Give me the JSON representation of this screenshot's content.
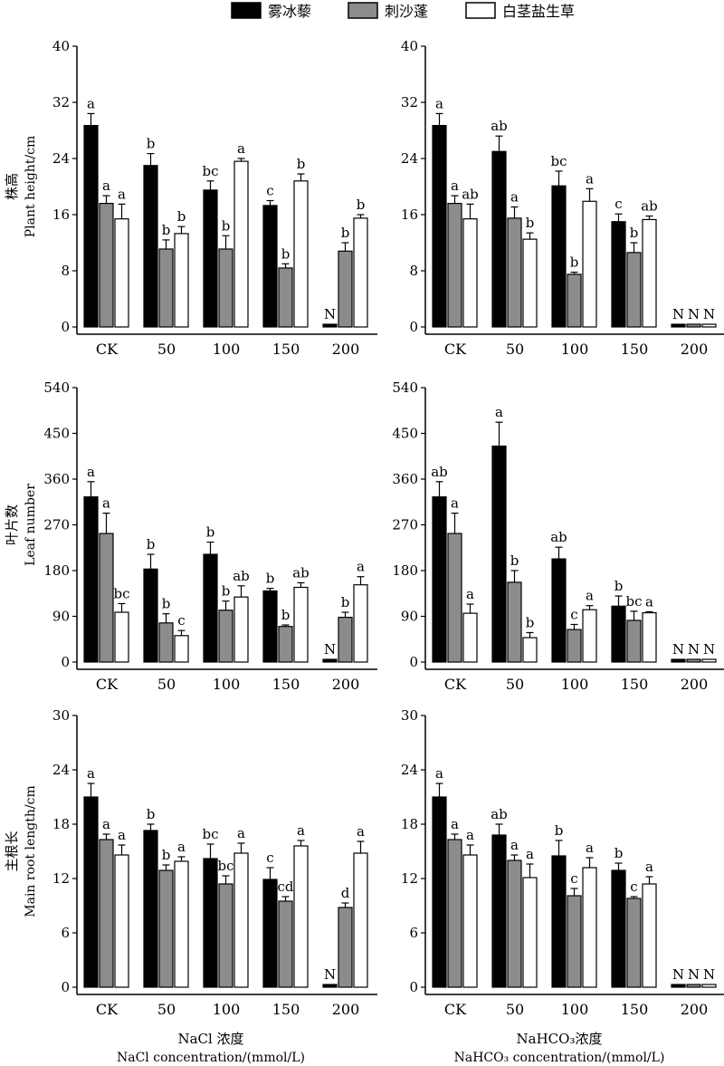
{
  "colors": {
    "series": [
      "#000000",
      "#8c8c8c",
      "#ffffff"
    ],
    "stroke": "#000000"
  },
  "legend": {
    "position": "top-center",
    "entries": [
      "雾冰藜",
      "刺沙蓬",
      "白茎盐生草"
    ]
  },
  "x_titles": {
    "left": {
      "cn": "NaCl 浓度",
      "en": "NaCl concentration/(mmol/L)"
    },
    "right": {
      "cn": "NaHCO₃浓度",
      "en": "NaHCO₃ concentration/(mmol/L)"
    }
  },
  "chart_data": [
    {
      "type": "bar",
      "ylabel_cn": "株高",
      "ylabel_en": "Plant height/cm",
      "ylim": [
        0,
        40
      ],
      "yticks": [
        0,
        8,
        16,
        24,
        32,
        40
      ],
      "categories": [
        "CK",
        "50",
        "100",
        "150",
        "200"
      ],
      "series": [
        {
          "name": "雾冰藜",
          "values": [
            28.7,
            23.0,
            19.5,
            17.3,
            0
          ],
          "errors": [
            1.7,
            1.7,
            1.3,
            0.7,
            0
          ],
          "letters": [
            "a",
            "b",
            "bc",
            "c",
            "N"
          ]
        },
        {
          "name": "刺沙蓬",
          "values": [
            17.6,
            11.1,
            11.1,
            8.4,
            10.8
          ],
          "errors": [
            1.1,
            1.3,
            1.9,
            0.6,
            1.2
          ],
          "letters": [
            "a",
            "b",
            "b",
            "b",
            "b"
          ]
        },
        {
          "name": "白茎盐生草",
          "values": [
            15.4,
            13.3,
            23.6,
            20.8,
            15.5
          ],
          "errors": [
            2.1,
            1.0,
            0.4,
            1.0,
            0.5
          ],
          "letters": [
            "a",
            "b",
            "a",
            "b",
            "b"
          ]
        }
      ]
    },
    {
      "type": "bar",
      "ylabel_cn": "",
      "ylabel_en": "",
      "ylim": [
        0,
        40
      ],
      "yticks": [
        0,
        8,
        16,
        24,
        32,
        40
      ],
      "categories": [
        "CK",
        "50",
        "100",
        "150",
        "200"
      ],
      "series": [
        {
          "name": "雾冰藜",
          "values": [
            28.7,
            25.0,
            20.1,
            15.0,
            0
          ],
          "errors": [
            1.7,
            2.2,
            2.1,
            1.1,
            0
          ],
          "letters": [
            "a",
            "ab",
            "bc",
            "c",
            "N"
          ]
        },
        {
          "name": "刺沙蓬",
          "values": [
            17.6,
            15.5,
            7.5,
            10.6,
            0
          ],
          "errors": [
            1.1,
            1.6,
            0.3,
            1.4,
            0
          ],
          "letters": [
            "a",
            "a",
            "b",
            "b",
            "N"
          ]
        },
        {
          "name": "白茎盐生草",
          "values": [
            15.4,
            12.5,
            17.9,
            15.3,
            0
          ],
          "errors": [
            2.1,
            0.9,
            1.8,
            0.5,
            0
          ],
          "letters": [
            "ab",
            "b",
            "a",
            "ab",
            "N"
          ]
        }
      ]
    },
    {
      "type": "bar",
      "ylabel_cn": "叶片数",
      "ylabel_en": "Leaf number",
      "ylim": [
        0,
        540
      ],
      "yticks": [
        0,
        90,
        180,
        270,
        360,
        450,
        540
      ],
      "categories": [
        "CK",
        "50",
        "100",
        "150",
        "200"
      ],
      "series": [
        {
          "name": "雾冰藜",
          "values": [
            325,
            183,
            212,
            140,
            0
          ],
          "errors": [
            30,
            29,
            24,
            5,
            0
          ],
          "letters": [
            "a",
            "b",
            "b",
            "b",
            "N"
          ]
        },
        {
          "name": "刺沙蓬",
          "values": [
            253,
            77,
            102,
            70,
            88
          ],
          "errors": [
            40,
            18,
            18,
            3,
            10
          ],
          "letters": [
            "a",
            "b",
            "b",
            "b",
            "b"
          ]
        },
        {
          "name": "白茎盐生草",
          "values": [
            98,
            52,
            128,
            147,
            152
          ],
          "errors": [
            17,
            10,
            22,
            9,
            16
          ],
          "letters": [
            "bc",
            "c",
            "ab",
            "ab",
            "a"
          ]
        }
      ]
    },
    {
      "type": "bar",
      "ylabel_cn": "",
      "ylabel_en": "",
      "ylim": [
        0,
        540
      ],
      "yticks": [
        0,
        90,
        180,
        270,
        360,
        450,
        540
      ],
      "categories": [
        "CK",
        "50",
        "100",
        "150",
        "200"
      ],
      "series": [
        {
          "name": "雾冰藜",
          "values": [
            325,
            425,
            203,
            110,
            0
          ],
          "errors": [
            30,
            47,
            23,
            20,
            0
          ],
          "letters": [
            "ab",
            "a",
            "ab",
            "b",
            "N"
          ]
        },
        {
          "name": "刺沙蓬",
          "values": [
            253,
            157,
            64,
            82,
            0
          ],
          "errors": [
            40,
            23,
            10,
            18,
            0
          ],
          "letters": [
            "a",
            "b",
            "c",
            "bc",
            "N"
          ]
        },
        {
          "name": "白茎盐生草",
          "values": [
            96,
            48,
            103,
            97,
            0
          ],
          "errors": [
            18,
            10,
            8,
            2,
            0
          ],
          "letters": [
            "a",
            "b",
            "a",
            "a",
            "N"
          ]
        }
      ]
    },
    {
      "type": "bar",
      "ylabel_cn": "主根长",
      "ylabel_en": "Main root length/cm",
      "ylim": [
        0,
        30
      ],
      "yticks": [
        0,
        6,
        12,
        18,
        24,
        30
      ],
      "categories": [
        "CK",
        "50",
        "100",
        "150",
        "200"
      ],
      "series": [
        {
          "name": "雾冰藜",
          "values": [
            21.0,
            17.3,
            14.2,
            11.9,
            0
          ],
          "errors": [
            1.5,
            0.7,
            1.6,
            1.3,
            0
          ],
          "letters": [
            "a",
            "b",
            "bc",
            "c",
            "N"
          ]
        },
        {
          "name": "刺沙蓬",
          "values": [
            16.3,
            12.9,
            11.4,
            9.5,
            8.8
          ],
          "errors": [
            0.6,
            0.6,
            0.9,
            0.5,
            0.5
          ],
          "letters": [
            "a",
            "b",
            "bc",
            "cd",
            "d"
          ]
        },
        {
          "name": "白茎盐生草",
          "values": [
            14.6,
            13.9,
            14.8,
            15.6,
            14.8
          ],
          "errors": [
            1.1,
            0.5,
            1.1,
            0.6,
            1.3
          ],
          "letters": [
            "a",
            "a",
            "a",
            "a",
            "a"
          ]
        }
      ]
    },
    {
      "type": "bar",
      "ylabel_cn": "",
      "ylabel_en": "",
      "ylim": [
        0,
        30
      ],
      "yticks": [
        0,
        6,
        12,
        18,
        24,
        30
      ],
      "categories": [
        "CK",
        "50",
        "100",
        "150",
        "200"
      ],
      "series": [
        {
          "name": "雾冰藜",
          "values": [
            21.0,
            16.8,
            14.5,
            12.9,
            0
          ],
          "errors": [
            1.5,
            1.2,
            1.7,
            0.8,
            0
          ],
          "letters": [
            "a",
            "ab",
            "b",
            "b",
            "N"
          ]
        },
        {
          "name": "刺沙蓬",
          "values": [
            16.3,
            14.0,
            10.1,
            9.8,
            0
          ],
          "errors": [
            0.6,
            0.6,
            0.8,
            0.2,
            0
          ],
          "letters": [
            "a",
            "a",
            "c",
            "c",
            "N"
          ]
        },
        {
          "name": "白茎盐生草",
          "values": [
            14.6,
            12.1,
            13.2,
            11.4,
            0
          ],
          "errors": [
            1.1,
            1.5,
            1.1,
            0.8,
            0
          ],
          "letters": [
            "a",
            "a",
            "a",
            "a",
            "N"
          ]
        }
      ]
    }
  ]
}
